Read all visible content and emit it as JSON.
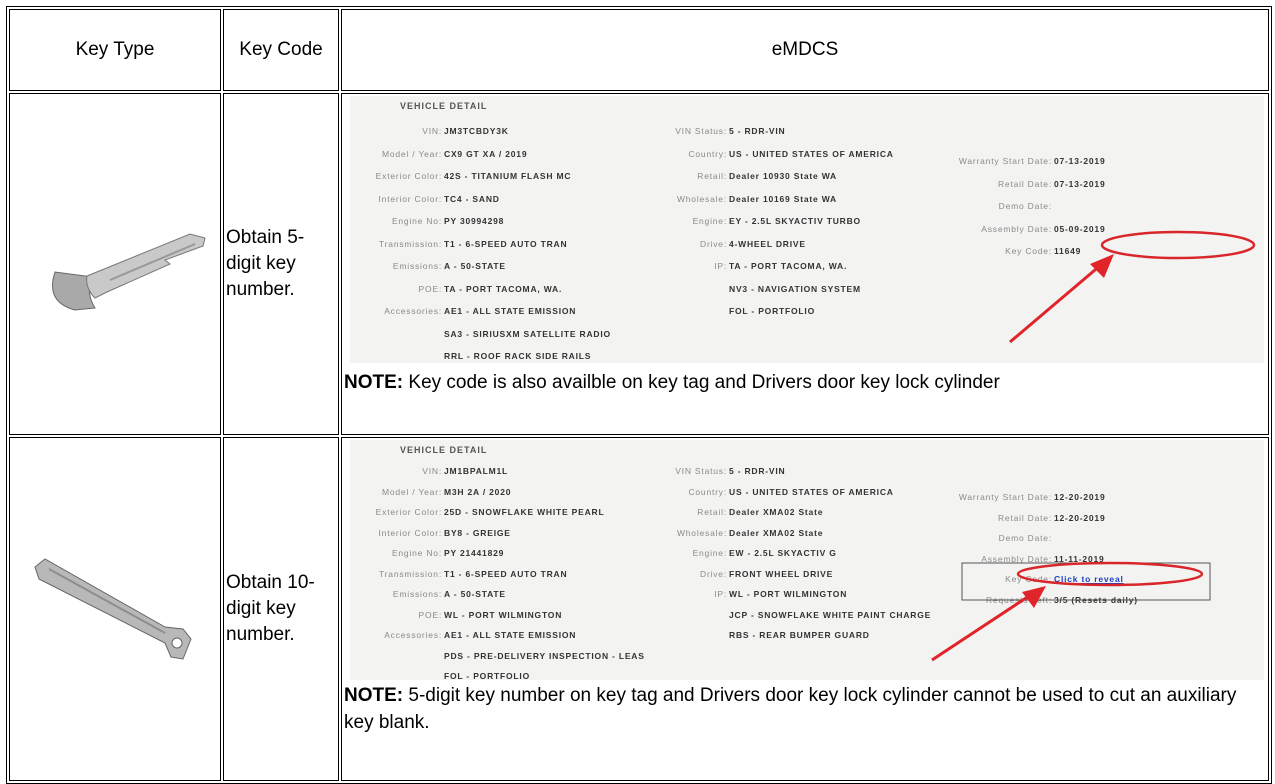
{
  "header": {
    "key_type": "Key Type",
    "key_code": "Key Code",
    "emdcs": "eMDCS"
  },
  "rows": [
    {
      "key_code": "Obtain 5-digit key number.",
      "screenshot": {
        "title": "VEHICLE DETAIL",
        "columns": [
          [
            {
              "label": "VIN:",
              "value": "JM3TCBDY3K"
            },
            {
              "label": "Model / Year:",
              "value": "CX9 GT XA / 2019"
            },
            {
              "label": "Exterior Color:",
              "value": "42S - TITANIUM FLASH MC"
            },
            {
              "label": "Interior Color:",
              "value": "TC4 - SAND"
            },
            {
              "label": "Engine No:",
              "value": "PY 30994298"
            },
            {
              "label": "Transmission:",
              "value": "T1 - 6-SPEED AUTO TRAN"
            },
            {
              "label": "Emissions:",
              "value": "A - 50-STATE"
            },
            {
              "label": "POE:",
              "value": "TA - PORT TACOMA, WA."
            },
            {
              "label": "Accessories:",
              "value": "AE1 - ALL STATE EMISSION"
            },
            {
              "value": "SA3 - SIRIUSXM SATELLITE RADIO"
            },
            {
              "value": "RRL - ROOF RACK SIDE RAILS"
            }
          ],
          [
            {
              "label": "VIN Status:",
              "value": "5 - RDR-VIN"
            },
            {
              "label": "Country:",
              "value": "US - UNITED STATES OF AMERICA"
            },
            {
              "label": "Retail:",
              "value": "Dealer 10930 State WA"
            },
            {
              "label": "Wholesale:",
              "value": "Dealer 10169 State WA"
            },
            {
              "label": "Engine:",
              "value": "EY - 2.5L SKYACTIV TURBO"
            },
            {
              "label": "Drive:",
              "value": "4-WHEEL DRIVE"
            },
            {
              "label": "IP:",
              "value": "TA - PORT TACOMA, WA."
            },
            {
              "value": "NV3 - NAVIGATION SYSTEM"
            },
            {
              "value": "FOL - PORTFOLIO"
            }
          ],
          [
            {
              "label": "Warranty Start Date:",
              "value": "07-13-2019"
            },
            {
              "label": "Retail Date:",
              "value": "07-13-2019"
            },
            {
              "label": "Demo Date:"
            },
            {
              "label": "Assembly Date:",
              "value": "05-09-2019"
            },
            {
              "label": "Key Code:",
              "value": "11649"
            }
          ]
        ]
      },
      "note_label": "NOTE:",
      "note": "Key code is also availble on key tag and Drivers door key lock cylinder"
    },
    {
      "key_code": "Obtain 10-digit key number.",
      "screenshot": {
        "title": "VEHICLE DETAIL",
        "columns": [
          [
            {
              "label": "VIN:",
              "value": "JM1BPALM1L"
            },
            {
              "label": "Model / Year:",
              "value": "M3H 2A / 2020"
            },
            {
              "label": "Exterior Color:",
              "value": "25D - SNOWFLAKE WHITE PEARL"
            },
            {
              "label": "Interior Color:",
              "value": "BY8 - GREIGE"
            },
            {
              "label": "Engine No:",
              "value": "PY 21441829"
            },
            {
              "label": "Transmission:",
              "value": "T1 - 6-SPEED AUTO TRAN"
            },
            {
              "label": "Emissions:",
              "value": "A - 50-STATE"
            },
            {
              "label": "POE:",
              "value": "WL - PORT WILMINGTON"
            },
            {
              "label": "Accessories:",
              "value": "AE1 - ALL STATE EMISSION"
            },
            {
              "value": "PDS - PRE-DELIVERY INSPECTION - LEAS"
            },
            {
              "value": "FOL - PORTFOLIO"
            }
          ],
          [
            {
              "label": "VIN Status:",
              "value": "5 - RDR-VIN"
            },
            {
              "label": "Country:",
              "value": "US - UNITED STATES OF AMERICA"
            },
            {
              "label": "Retail:",
              "value": "Dealer XMA02 State"
            },
            {
              "label": "Wholesale:",
              "value": "Dealer XMA02 State"
            },
            {
              "label": "Engine:",
              "value": "EW - 2.5L SKYACTIV G"
            },
            {
              "label": "Drive:",
              "value": "FRONT WHEEL DRIVE"
            },
            {
              "label": "IP:",
              "value": "WL - PORT WILMINGTON"
            },
            {
              "value": "JCP - SNOWFLAKE WHITE PAINT CHARGE"
            },
            {
              "value": "RBS - REAR BUMPER GUARD"
            }
          ],
          [
            {
              "label": "Warranty Start Date:",
              "value": "12-20-2019"
            },
            {
              "label": "Retail Date:",
              "value": "12-20-2019"
            },
            {
              "label": "Demo Date:"
            },
            {
              "label": "Assembly Date:",
              "value": "11-11-2019"
            },
            {
              "label": "Key Code:",
              "link": "Click to reveal"
            },
            {
              "label": "Requests Left:",
              "value": "3/5 (Resets daily)"
            }
          ]
        ]
      },
      "note_label": "NOTE:",
      "note": "5-digit key number on key tag and Drivers door key lock cylinder cannot be used to cut an auxiliary key blank."
    }
  ]
}
